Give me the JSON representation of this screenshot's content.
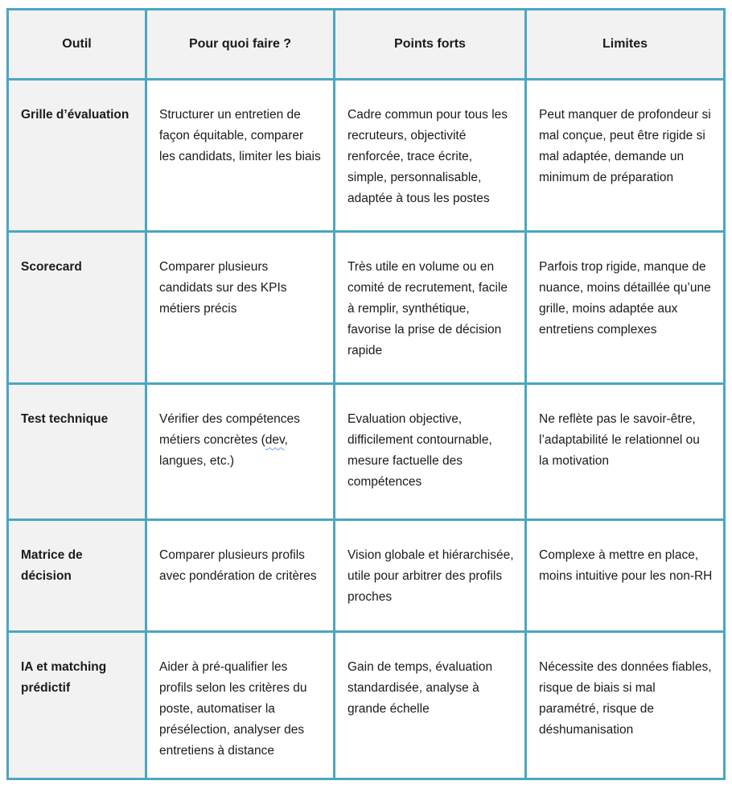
{
  "accent_border_color": "#4ba6c3",
  "header_background": "#f2f2f2",
  "row_label_background": "#f2f2f2",
  "table": {
    "columns": [
      "Outil",
      "Pour quoi faire ?",
      "Points forts",
      "Limites"
    ],
    "rows": [
      {
        "tool": "Grille d’évaluation",
        "purpose": "Structurer un entretien de façon équitable, comparer les candidats, limiter les biais",
        "strengths": "Cadre commun pour tous les recruteurs, objectivité renforcée, trace écrite, simple, personnalisable, adaptée à tous les postes",
        "limits": "Peut manquer de profondeur si mal conçue, peut être rigide si mal adaptée, demande un minimum de préparation"
      },
      {
        "tool": "Scorecard",
        "purpose": "Comparer plusieurs candidats sur des KPIs métiers précis",
        "strengths": "Très utile en volume ou en comité de recrutement, facile à remplir, synthétique, favorise la prise de décision rapide",
        "limits": "Parfois trop rigide, manque de nuance, moins détaillée qu’une grille, moins adaptée aux entretiens complexes"
      },
      {
        "tool": "Test technique",
        "purpose": "Vérifier des compétences métiers concrètes (dev, langues, etc.)",
        "strengths": "Evaluation objective, difficilement contournable, mesure factuelle des compétences",
        "limits": "Ne reflète pas le savoir-être, l’adaptabilité le relationnel ou la motivation"
      },
      {
        "tool": "Matrice de décision",
        "purpose": "Comparer plusieurs profils avec pondération de critères",
        "strengths": "Vision globale et hiérarchisée, utile pour arbitrer des profils proches",
        "limits": "Complexe à mettre en place, moins intuitive pour les non-RH"
      },
      {
        "tool": "IA et matching prédictif",
        "purpose": "Aider à pré-qualifier les profils selon les critères du poste, automatiser la présélection, analyser des entretiens à distance",
        "strengths": "Gain de temps, évaluation standardisée, analyse à grande échelle",
        "limits": "Nécessite des données fiables, risque de biais si mal paramétré, risque de déshumanisation"
      }
    ]
  },
  "spellcheck": {
    "row_index": 2,
    "field": "purpose",
    "word": "dev"
  }
}
